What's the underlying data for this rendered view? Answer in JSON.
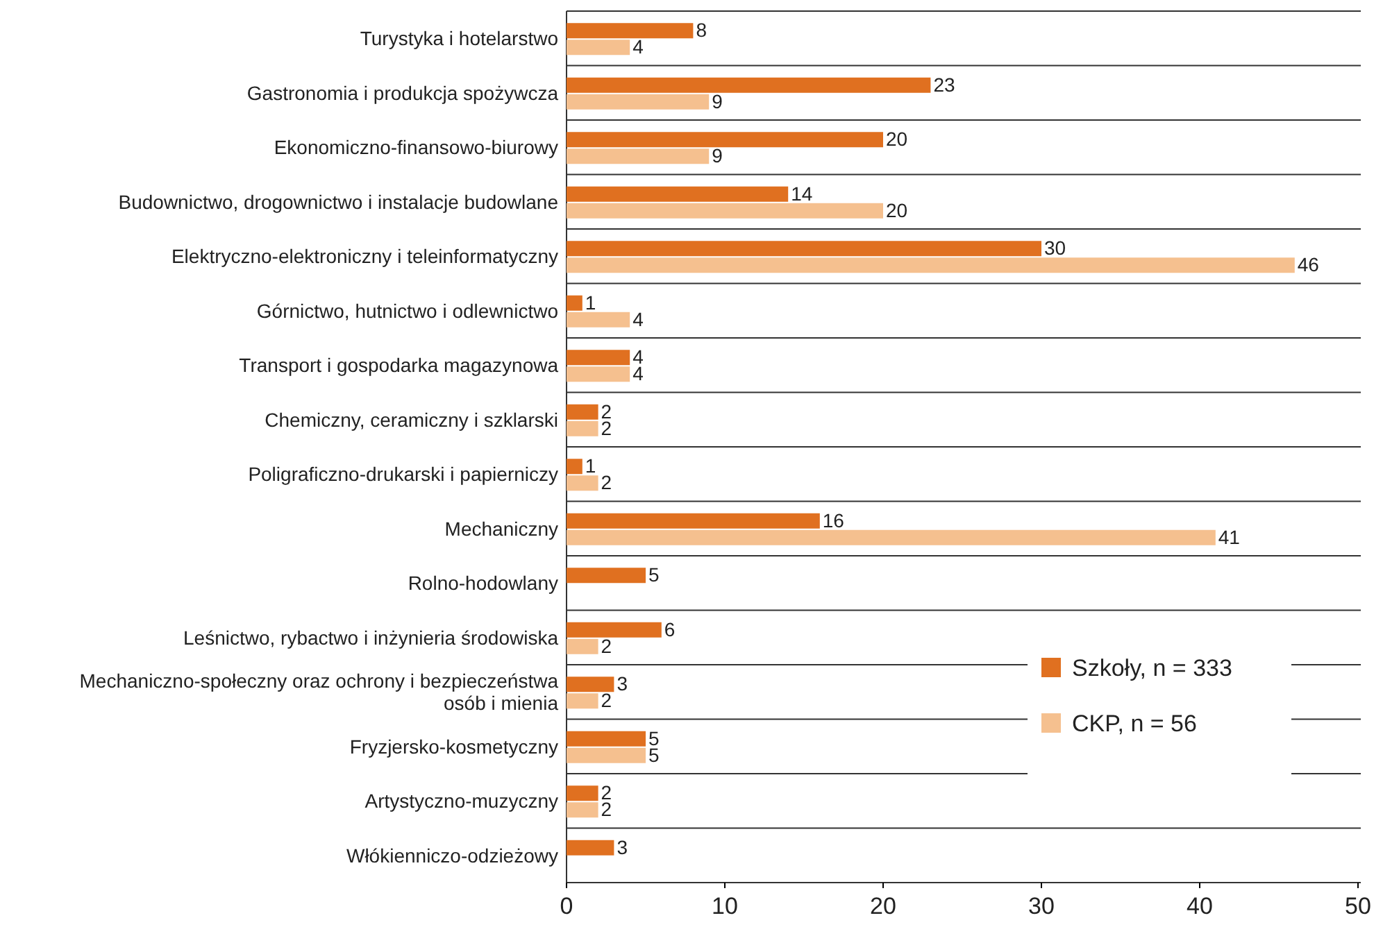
{
  "chart_data": {
    "type": "bar",
    "orientation": "horizontal",
    "categories": [
      "Turystyka i hotelarstwo",
      "Gastronomia i produkcja spożywcza",
      "Ekonomiczno-finansowo-biurowy",
      "Budownictwo, drogownictwo i instalacje budowlane",
      "Elektryczno-elektroniczny i teleinformatyczny",
      "Górnictwo, hutnictwo i odlewnictwo",
      "Transport i gospodarka magazynowa",
      "Chemiczny, ceramiczny i szklarski",
      "Poligraficzno-drukarski i papierniczy",
      "Mechaniczny",
      "Rolno-hodowlany",
      "Leśnictwo, rybactwo i inżynieria środowiska",
      "Mechaniczno-społeczny oraz ochrony i bezpieczeństwa osób i mienia",
      "Fryzjersko-kosmetyczny",
      "Artystyczno-muzyczny",
      "Włókienniczo-odzieżowy"
    ],
    "series": [
      {
        "name": "Szkoły, n = 333",
        "color": "#e07020",
        "values": [
          8,
          23,
          20,
          14,
          30,
          1,
          4,
          2,
          1,
          16,
          5,
          6,
          3,
          5,
          2,
          3
        ]
      },
      {
        "name": "CKP, n = 56",
        "color": "#f5c08f",
        "values": [
          4,
          9,
          9,
          20,
          46,
          4,
          4,
          2,
          2,
          41,
          null,
          2,
          2,
          5,
          2,
          null
        ]
      }
    ],
    "xlim": [
      0,
      50
    ],
    "xticks": [
      0,
      10,
      20,
      30,
      40,
      50
    ],
    "data_labels": true,
    "grid": "y",
    "legend": "bottom right"
  }
}
